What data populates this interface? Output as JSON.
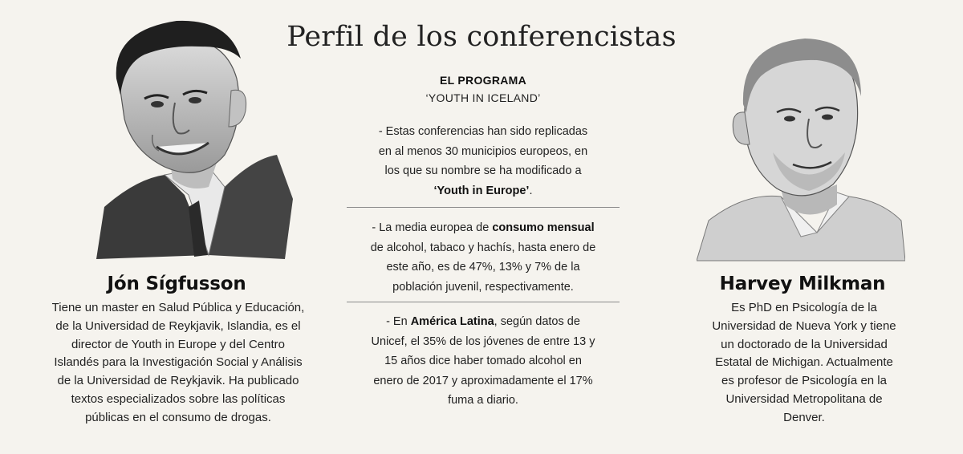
{
  "title": "Perfil de los conferencistas",
  "left_speaker": {
    "name": "Jón Sígfusson",
    "bio": [
      "Tiene un master en Salud Pública y Educación,",
      "de la Universidad de Reykjavik, Islandia, es el",
      "director de Youth in Europe y del Centro",
      "Islandés para la Investigación Social y Análisis",
      "de la Universidad de Reykjavik. Ha publicado",
      "textos especializados sobre las políticas",
      "públicas en el consumo de drogas."
    ]
  },
  "right_speaker": {
    "name": "Harvey Milkman",
    "bio": [
      "Es PhD en Psicología de la",
      "Universidad de Nueva York y tiene",
      "un doctorado de la Universidad",
      "Estatal de Michigan. Actualmente",
      "es profesor de Psicología en la",
      "Universidad Metropolitana de",
      "Denver."
    ]
  },
  "program": {
    "label": "EL PROGRAMA",
    "name": "‘YOUTH IN ICELAND’",
    "p1_lines": [
      "- Estas conferencias han sido replicadas",
      "en al menos 30 municipios europeos, en",
      "los que su nombre se ha modificado a"
    ],
    "p1_bold": "‘Youth in Europe’",
    "p1_end": ".",
    "p2_start": "- La media europea de ",
    "p2_bold": "consumo mensual",
    "p2_lines": [
      "de alcohol, tabaco y hachís, hasta enero de",
      "este año, es de 47%, 13% y 7% de la",
      "población juvenil, respectivamente."
    ],
    "p3_start": "- En ",
    "p3_bold": "América Latina",
    "p3_after": ", según datos de",
    "p3_lines": [
      "Unicef, el 35% de los jóvenes de entre 13 y",
      "15 años dice haber tomado alcohol en",
      "enero de 2017 y aproximadamente el 17%",
      "fuma a diario."
    ]
  }
}
